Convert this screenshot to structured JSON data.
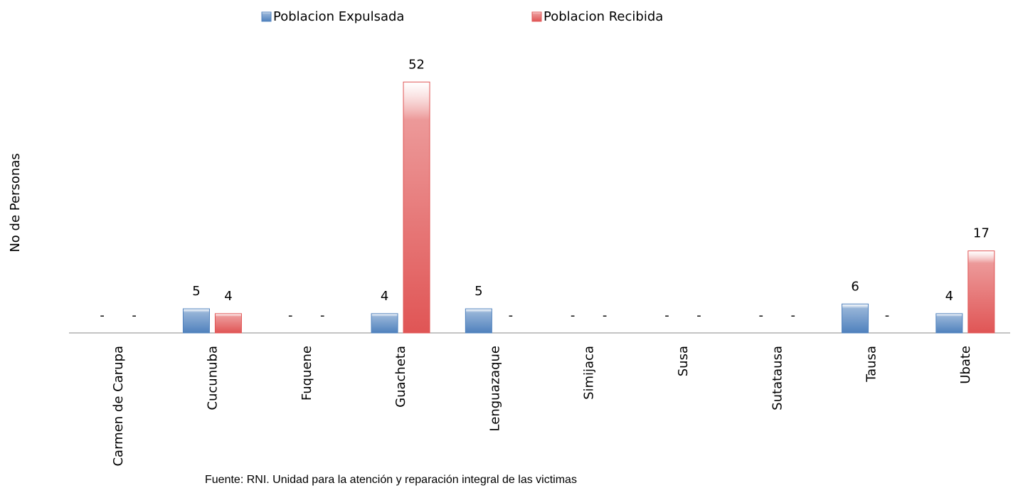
{
  "chart_data": {
    "type": "bar",
    "y_label": "No de Personas",
    "note": "Fuente:  RNI. Unidad para  la atención y reparación integral de las victimas",
    "categories": [
      "Carmen de Carupa",
      "Cucunuba",
      "Fuquene",
      "Guacheta",
      "Lenguazaque",
      "Simijaca",
      "Susa",
      "Sutatausa",
      "Tausa",
      "Ubate"
    ],
    "series": [
      {
        "name": "Poblacion Expulsada",
        "color": "#4f81bd",
        "values": [
          0,
          5,
          0,
          4,
          5,
          0,
          0,
          0,
          6,
          4
        ],
        "value_labels": [
          "-",
          "5",
          "-",
          "4",
          "5",
          "-",
          "-",
          "-",
          "6",
          "4"
        ]
      },
      {
        "name": "Poblacion Recibida",
        "color": "#e05555",
        "values": [
          0,
          4,
          0,
          52,
          0,
          0,
          0,
          0,
          0,
          17
        ],
        "value_labels": [
          "-",
          "4",
          "-",
          "52",
          "-",
          "-",
          "-",
          "-",
          "-",
          "17"
        ]
      }
    ],
    "ylim": [
      0,
      60
    ],
    "grid": false
  }
}
